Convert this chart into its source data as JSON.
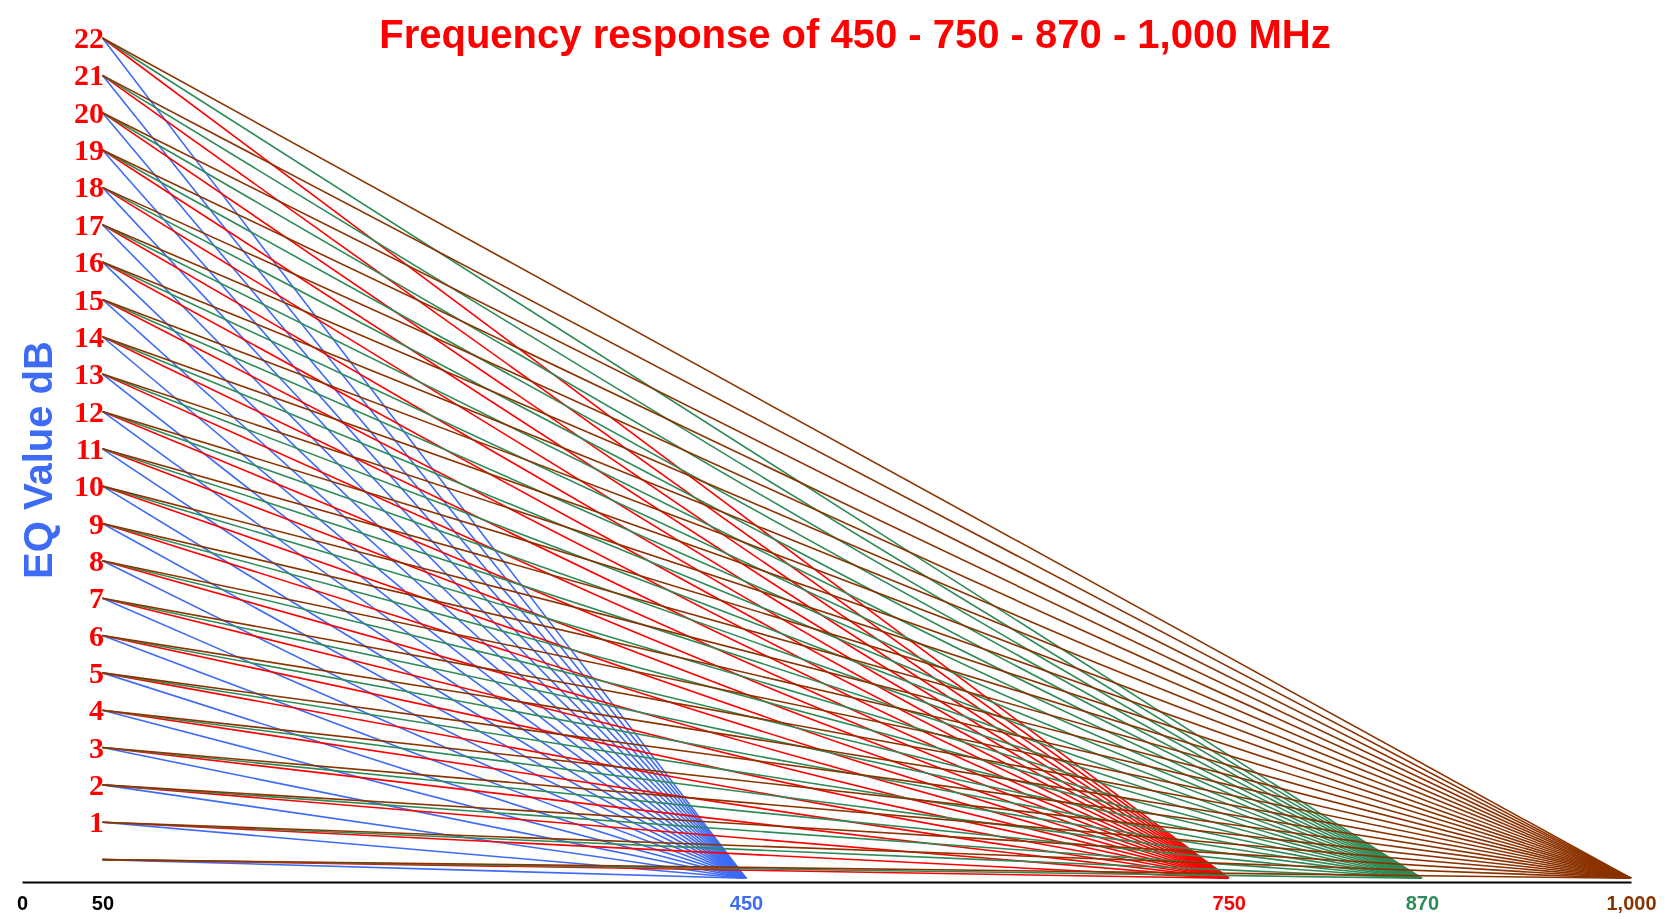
{
  "chart_data": {
    "type": "line",
    "title": "Frequency response of 450 - 750 - 870 - 1,000 MHz",
    "ylabel": "EQ Value dB",
    "xlim": [
      0,
      1000
    ],
    "ylim": [
      -0.6,
      22
    ],
    "xticks": [
      0,
      50,
      450,
      750,
      870,
      {
        "value": 1000,
        "label": "1,000"
      }
    ],
    "yticks": [
      1,
      2,
      3,
      4,
      5,
      6,
      7,
      8,
      9,
      10,
      11,
      12,
      13,
      14,
      15,
      16,
      17,
      18,
      19,
      20,
      21,
      22
    ],
    "grid": false,
    "marker": "none",
    "line_style": "solid",
    "series": [
      {
        "color": "#3d6bf5",
        "x": [
          50,
          450
        ],
        "values": [
          0,
          -0.5
        ]
      },
      {
        "color": "#3d6bf5",
        "x": [
          50,
          450
        ],
        "values": [
          1,
          -0.5
        ]
      },
      {
        "color": "#3d6bf5",
        "x": [
          50,
          450
        ],
        "values": [
          2,
          -0.5
        ]
      },
      {
        "color": "#3d6bf5",
        "x": [
          50,
          450
        ],
        "values": [
          3,
          -0.5
        ]
      },
      {
        "color": "#3d6bf5",
        "x": [
          50,
          450
        ],
        "values": [
          4,
          -0.5
        ]
      },
      {
        "color": "#3d6bf5",
        "x": [
          50,
          450
        ],
        "values": [
          5,
          -0.5
        ]
      },
      {
        "color": "#3d6bf5",
        "x": [
          50,
          450
        ],
        "values": [
          6,
          -0.5
        ]
      },
      {
        "color": "#3d6bf5",
        "x": [
          50,
          450
        ],
        "values": [
          7,
          -0.5
        ]
      },
      {
        "color": "#3d6bf5",
        "x": [
          50,
          450
        ],
        "values": [
          8,
          -0.5
        ]
      },
      {
        "color": "#3d6bf5",
        "x": [
          50,
          450
        ],
        "values": [
          9,
          -0.5
        ]
      },
      {
        "color": "#3d6bf5",
        "x": [
          50,
          450
        ],
        "values": [
          10,
          -0.5
        ]
      },
      {
        "color": "#3d6bf5",
        "x": [
          50,
          450
        ],
        "values": [
          11,
          -0.5
        ]
      },
      {
        "color": "#3d6bf5",
        "x": [
          50,
          450
        ],
        "values": [
          12,
          -0.5
        ]
      },
      {
        "color": "#3d6bf5",
        "x": [
          50,
          450
        ],
        "values": [
          13,
          -0.5
        ]
      },
      {
        "color": "#3d6bf5",
        "x": [
          50,
          450
        ],
        "values": [
          14,
          -0.5
        ]
      },
      {
        "color": "#3d6bf5",
        "x": [
          50,
          450
        ],
        "values": [
          15,
          -0.5
        ]
      },
      {
        "color": "#3d6bf5",
        "x": [
          50,
          450
        ],
        "values": [
          16,
          -0.5
        ]
      },
      {
        "color": "#3d6bf5",
        "x": [
          50,
          450
        ],
        "values": [
          17,
          -0.5
        ]
      },
      {
        "color": "#3d6bf5",
        "x": [
          50,
          450
        ],
        "values": [
          18,
          -0.5
        ]
      },
      {
        "color": "#3d6bf5",
        "x": [
          50,
          450
        ],
        "values": [
          19,
          -0.5
        ]
      },
      {
        "color": "#3d6bf5",
        "x": [
          50,
          450
        ],
        "values": [
          20,
          -0.5
        ]
      },
      {
        "color": "#3d6bf5",
        "x": [
          50,
          450
        ],
        "values": [
          21,
          -0.5
        ]
      },
      {
        "color": "#3d6bf5",
        "x": [
          50,
          450
        ],
        "values": [
          22,
          -0.5
        ]
      },
      {
        "color": "#ff0000",
        "x": [
          50,
          750
        ],
        "values": [
          0,
          -0.5
        ]
      },
      {
        "color": "#ff0000",
        "x": [
          50,
          750
        ],
        "values": [
          1,
          -0.5
        ]
      },
      {
        "color": "#ff0000",
        "x": [
          50,
          750
        ],
        "values": [
          2,
          -0.5
        ]
      },
      {
        "color": "#ff0000",
        "x": [
          50,
          750
        ],
        "values": [
          3,
          -0.5
        ]
      },
      {
        "color": "#ff0000",
        "x": [
          50,
          750
        ],
        "values": [
          4,
          -0.5
        ]
      },
      {
        "color": "#ff0000",
        "x": [
          50,
          750
        ],
        "values": [
          5,
          -0.5
        ]
      },
      {
        "color": "#ff0000",
        "x": [
          50,
          750
        ],
        "values": [
          6,
          -0.5
        ]
      },
      {
        "color": "#ff0000",
        "x": [
          50,
          750
        ],
        "values": [
          7,
          -0.5
        ]
      },
      {
        "color": "#ff0000",
        "x": [
          50,
          750
        ],
        "values": [
          8,
          -0.5
        ]
      },
      {
        "color": "#ff0000",
        "x": [
          50,
          750
        ],
        "values": [
          9,
          -0.5
        ]
      },
      {
        "color": "#ff0000",
        "x": [
          50,
          750
        ],
        "values": [
          10,
          -0.5
        ]
      },
      {
        "color": "#ff0000",
        "x": [
          50,
          750
        ],
        "values": [
          11,
          -0.5
        ]
      },
      {
        "color": "#ff0000",
        "x": [
          50,
          750
        ],
        "values": [
          12,
          -0.5
        ]
      },
      {
        "color": "#ff0000",
        "x": [
          50,
          750
        ],
        "values": [
          13,
          -0.5
        ]
      },
      {
        "color": "#ff0000",
        "x": [
          50,
          750
        ],
        "values": [
          14,
          -0.5
        ]
      },
      {
        "color": "#ff0000",
        "x": [
          50,
          750
        ],
        "values": [
          15,
          -0.5
        ]
      },
      {
        "color": "#ff0000",
        "x": [
          50,
          750
        ],
        "values": [
          16,
          -0.5
        ]
      },
      {
        "color": "#ff0000",
        "x": [
          50,
          750
        ],
        "values": [
          17,
          -0.5
        ]
      },
      {
        "color": "#ff0000",
        "x": [
          50,
          750
        ],
        "values": [
          18,
          -0.5
        ]
      },
      {
        "color": "#ff0000",
        "x": [
          50,
          750
        ],
        "values": [
          19,
          -0.5
        ]
      },
      {
        "color": "#ff0000",
        "x": [
          50,
          750
        ],
        "values": [
          20,
          -0.5
        ]
      },
      {
        "color": "#ff0000",
        "x": [
          50,
          750
        ],
        "values": [
          21,
          -0.5
        ]
      },
      {
        "color": "#ff0000",
        "x": [
          50,
          750
        ],
        "values": [
          22,
          -0.5
        ]
      },
      {
        "color": "#2e8b57",
        "x": [
          50,
          870
        ],
        "values": [
          0,
          -0.5
        ]
      },
      {
        "color": "#2e8b57",
        "x": [
          50,
          870
        ],
        "values": [
          1,
          -0.5
        ]
      },
      {
        "color": "#2e8b57",
        "x": [
          50,
          870
        ],
        "values": [
          2,
          -0.5
        ]
      },
      {
        "color": "#2e8b57",
        "x": [
          50,
          870
        ],
        "values": [
          3,
          -0.5
        ]
      },
      {
        "color": "#2e8b57",
        "x": [
          50,
          870
        ],
        "values": [
          4,
          -0.5
        ]
      },
      {
        "color": "#2e8b57",
        "x": [
          50,
          870
        ],
        "values": [
          5,
          -0.5
        ]
      },
      {
        "color": "#2e8b57",
        "x": [
          50,
          870
        ],
        "values": [
          6,
          -0.5
        ]
      },
      {
        "color": "#2e8b57",
        "x": [
          50,
          870
        ],
        "values": [
          7,
          -0.5
        ]
      },
      {
        "color": "#2e8b57",
        "x": [
          50,
          870
        ],
        "values": [
          8,
          -0.5
        ]
      },
      {
        "color": "#2e8b57",
        "x": [
          50,
          870
        ],
        "values": [
          9,
          -0.5
        ]
      },
      {
        "color": "#2e8b57",
        "x": [
          50,
          870
        ],
        "values": [
          10,
          -0.5
        ]
      },
      {
        "color": "#2e8b57",
        "x": [
          50,
          870
        ],
        "values": [
          11,
          -0.5
        ]
      },
      {
        "color": "#2e8b57",
        "x": [
          50,
          870
        ],
        "values": [
          12,
          -0.5
        ]
      },
      {
        "color": "#2e8b57",
        "x": [
          50,
          870
        ],
        "values": [
          13,
          -0.5
        ]
      },
      {
        "color": "#2e8b57",
        "x": [
          50,
          870
        ],
        "values": [
          14,
          -0.5
        ]
      },
      {
        "color": "#2e8b57",
        "x": [
          50,
          870
        ],
        "values": [
          15,
          -0.5
        ]
      },
      {
        "color": "#2e8b57",
        "x": [
          50,
          870
        ],
        "values": [
          16,
          -0.5
        ]
      },
      {
        "color": "#2e8b57",
        "x": [
          50,
          870
        ],
        "values": [
          17,
          -0.5
        ]
      },
      {
        "color": "#2e8b57",
        "x": [
          50,
          870
        ],
        "values": [
          18,
          -0.5
        ]
      },
      {
        "color": "#2e8b57",
        "x": [
          50,
          870
        ],
        "values": [
          19,
          -0.5
        ]
      },
      {
        "color": "#2e8b57",
        "x": [
          50,
          870
        ],
        "values": [
          20,
          -0.5
        ]
      },
      {
        "color": "#2e8b57",
        "x": [
          50,
          870
        ],
        "values": [
          21,
          -0.5
        ]
      },
      {
        "color": "#2e8b57",
        "x": [
          50,
          870
        ],
        "values": [
          22,
          -0.5
        ]
      },
      {
        "color": "#8b3300",
        "x": [
          50,
          1000
        ],
        "values": [
          0,
          -0.5
        ]
      },
      {
        "color": "#8b3300",
        "x": [
          50,
          1000
        ],
        "values": [
          1,
          -0.5
        ]
      },
      {
        "color": "#8b3300",
        "x": [
          50,
          1000
        ],
        "values": [
          2,
          -0.5
        ]
      },
      {
        "color": "#8b3300",
        "x": [
          50,
          1000
        ],
        "values": [
          3,
          -0.5
        ]
      },
      {
        "color": "#8b3300",
        "x": [
          50,
          1000
        ],
        "values": [
          4,
          -0.5
        ]
      },
      {
        "color": "#8b3300",
        "x": [
          50,
          1000
        ],
        "values": [
          5,
          -0.5
        ]
      },
      {
        "color": "#8b3300",
        "x": [
          50,
          1000
        ],
        "values": [
          6,
          -0.5
        ]
      },
      {
        "color": "#8b3300",
        "x": [
          50,
          1000
        ],
        "values": [
          7,
          -0.5
        ]
      },
      {
        "color": "#8b3300",
        "x": [
          50,
          1000
        ],
        "values": [
          8,
          -0.5
        ]
      },
      {
        "color": "#8b3300",
        "x": [
          50,
          1000
        ],
        "values": [
          9,
          -0.5
        ]
      },
      {
        "color": "#8b3300",
        "x": [
          50,
          1000
        ],
        "values": [
          10,
          -0.5
        ]
      },
      {
        "color": "#8b3300",
        "x": [
          50,
          1000
        ],
        "values": [
          11,
          -0.5
        ]
      },
      {
        "color": "#8b3300",
        "x": [
          50,
          1000
        ],
        "values": [
          12,
          -0.5
        ]
      },
      {
        "color": "#8b3300",
        "x": [
          50,
          1000
        ],
        "values": [
          13,
          -0.5
        ]
      },
      {
        "color": "#8b3300",
        "x": [
          50,
          1000
        ],
        "values": [
          14,
          -0.5
        ]
      },
      {
        "color": "#8b3300",
        "x": [
          50,
          1000
        ],
        "values": [
          15,
          -0.5
        ]
      },
      {
        "color": "#8b3300",
        "x": [
          50,
          1000
        ],
        "values": [
          16,
          -0.5
        ]
      },
      {
        "color": "#8b3300",
        "x": [
          50,
          1000
        ],
        "values": [
          17,
          -0.5
        ]
      },
      {
        "color": "#8b3300",
        "x": [
          50,
          1000
        ],
        "values": [
          18,
          -0.5
        ]
      },
      {
        "color": "#8b3300",
        "x": [
          50,
          1000
        ],
        "values": [
          19,
          -0.5
        ]
      },
      {
        "color": "#8b3300",
        "x": [
          50,
          1000
        ],
        "values": [
          20,
          -0.5
        ]
      },
      {
        "color": "#8b3300",
        "x": [
          50,
          1000
        ],
        "values": [
          21,
          -0.5
        ]
      },
      {
        "color": "#8b3300",
        "x": [
          50,
          1000
        ],
        "values": [
          22,
          -0.5
        ]
      }
    ]
  }
}
